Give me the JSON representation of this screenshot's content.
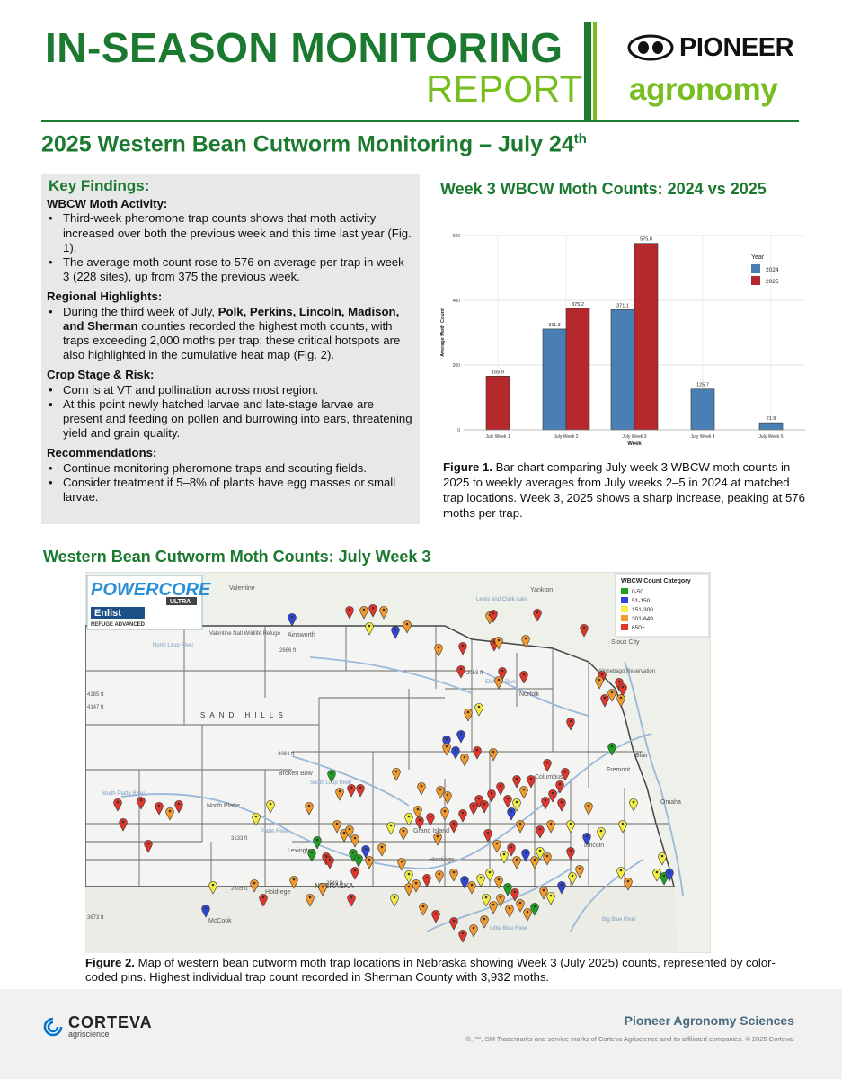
{
  "header": {
    "title": "IN-SEASON MONITORING",
    "report": "REPORT",
    "brand": "PIONEER",
    "brand_sub": "agronomy",
    "subtitle_main": "2025 Western Bean Cutworm Monitoring – July 24",
    "subtitle_sup": "th"
  },
  "findings": {
    "title": "Key Findings:",
    "s1_title": "WBCW Moth Activity:",
    "s1_b1": "Third-week pheromone trap counts shows that moth activity increased over both the previous week and this time last year (Fig. 1).",
    "s1_b2": "The average moth count rose to 576 on average per trap in week 3 (228 sites), up from 375 the previous week.",
    "s2_title": "Regional Highlights:",
    "s2_b1_pre": "During the third week of July, ",
    "s2_b1_bold1": "Polk, Perkins, Lincoln, Madison, and Sherman",
    "s2_b1_post": " counties recorded the highest moth counts, with traps exceeding 2,000 moths per trap; these critical hotspots are also highlighted in the cumulative heat map (Fig. 2).",
    "s3_title": "Crop Stage & Risk:",
    "s3_b1": "Corn is at VT and pollination across most region.",
    "s3_b2": "At this point newly hatched larvae and late-stage larvae are present and feeding on pollen and burrowing into ears, threatening yield and grain quality.",
    "s4_title": "Recommendations:",
    "s4_b1": "Continue monitoring pheromone traps and scouting fields.",
    "s4_b2": "Consider treatment if 5–8% of plants have egg masses or small larvae."
  },
  "chart_heading": "Week 3 WBCW Moth Counts: 2024 vs 2025",
  "chart_data": {
    "type": "bar",
    "categories": [
      "July Week 1",
      "July Week 2",
      "July Week 3",
      "July Week 4",
      "July Week 5"
    ],
    "series": [
      {
        "name": "2024",
        "color": "#4a7fb5",
        "values": [
          null,
          311.3,
          371.1,
          125.7,
          21.9
        ]
      },
      {
        "name": "2025",
        "color": "#b5282b",
        "values": [
          165.9,
          375.2,
          575.8,
          null,
          null
        ]
      }
    ],
    "value_labels": {
      "2024": [
        "",
        "311.3",
        "371.1",
        "125.7",
        "21.9"
      ],
      "2025": [
        "165.9",
        "375.2",
        "575.8",
        "",
        ""
      ]
    },
    "xlabel": "Week",
    "ylabel": "Average Moth Count",
    "ylim": [
      0,
      600
    ],
    "yticks": [
      "0",
      "200",
      "400",
      "600"
    ],
    "legend_title": "Year",
    "legend_position": "right",
    "grid": true
  },
  "fig1_caption_bold": "Figure 1.",
  "fig1_caption": " Bar chart comparing July week 3 WBCW moth counts in 2025 to weekly averages from July weeks 2–5 in 2024 at matched trap locations. Week 3, 2025 shows a sharp increase, peaking at 576 moths per trap.",
  "map_heading": "Western Bean Cutworm Moth Counts: July Week 3",
  "map": {
    "brand_powercore": "POWERCORE",
    "brand_ultra": "ULTRA",
    "brand_enlist": "Enlist",
    "brand_refuge": "REFUGE ADVANCED",
    "legend_title": "WBCW Count Category",
    "legend": [
      {
        "label": "0-50",
        "color": "#1ea11e"
      },
      {
        "label": "51-150",
        "color": "#2f47d6"
      },
      {
        "label": "151-300",
        "color": "#f4ee42"
      },
      {
        "label": "301-649",
        "color": "#f39a2c"
      },
      {
        "label": "650+",
        "color": "#e2352b"
      }
    ],
    "places": [
      "Valentine",
      "Ainsworth",
      "Yankton",
      "Sioux City",
      "Norfolk",
      "Fremont",
      "Blair",
      "Omaha",
      "Lincoln",
      "Broken Bow",
      "North Platte",
      "Lexington",
      "Holdrege",
      "McCook",
      "Grand Island",
      "Hastings",
      "Columbus",
      "NEBRASKA",
      "SAND HILLS",
      "Valentine Natl Wildlife Refuge",
      "Winnebago Reservation",
      "North Loup River",
      "South Loup River",
      "South Platte River",
      "Elkhorn River",
      "Lewis and Clark Lake",
      "Platte River",
      "Little Blue River",
      "Big Blue River"
    ],
    "elevations": [
      "2666 ft",
      "4185 ft",
      "4147 ft",
      "3084 ft",
      "3133 ft",
      "2805 ft",
      "2549 ft",
      "3673 ft",
      "2053 ft"
    ]
  },
  "fig2_caption_bold": "Figure 2.",
  "fig2_caption": " Map of western bean cutworm moth trap locations in Nebraska showing Week 3 (July 2025) counts, represented by color-coded pins. Highest individual trap count recorded in Sherman County with 3,932 moths.",
  "footer": {
    "corteva": "CORTEVA",
    "corteva_sub": "agriscience",
    "org": "Pioneer Agronomy Sciences",
    "trademark": "®, ™, SM Trademarks and service marks of Corteva Agriscience and its affiliated companies. © 2025 Corteva."
  }
}
